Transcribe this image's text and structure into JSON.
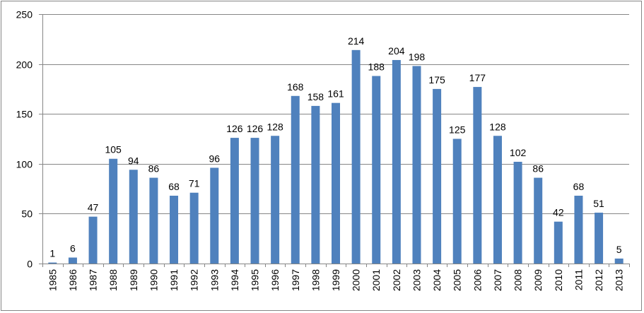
{
  "chart_data": {
    "type": "bar",
    "title": "",
    "xlabel": "",
    "ylabel": "",
    "ylim": [
      0,
      250
    ],
    "yticks": [
      0,
      50,
      100,
      150,
      200,
      250
    ],
    "grid": true,
    "legend": "none",
    "bar_color": "#4F81BD",
    "categories": [
      "1985",
      "1986",
      "1987",
      "1988",
      "1989",
      "1990",
      "1991",
      "1992",
      "1993",
      "1994",
      "1995",
      "1996",
      "1997",
      "1998",
      "1999",
      "2000",
      "2001",
      "2002",
      "2003",
      "2004",
      "2005",
      "2006",
      "2007",
      "2008",
      "2009",
      "2010",
      "2011",
      "2012",
      "2013"
    ],
    "values": [
      1,
      6,
      47,
      105,
      94,
      86,
      68,
      71,
      96,
      126,
      126,
      128,
      168,
      158,
      161,
      214,
      188,
      204,
      198,
      175,
      125,
      177,
      128,
      102,
      86,
      42,
      68,
      51,
      5
    ]
  }
}
